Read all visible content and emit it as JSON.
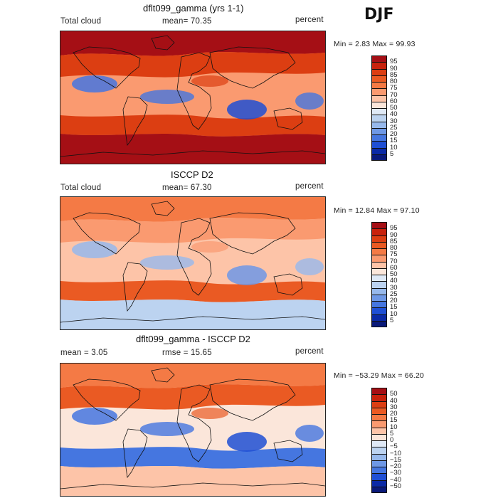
{
  "season": "DJF",
  "panels": [
    {
      "title": "dflt099_gamma (yrs 1-1)",
      "left_label": "Total cloud",
      "mid_label": "mean=  70.35",
      "right_label": "percent",
      "minmax": "Min =   2.83 Max =  99.93",
      "levels": [
        "95",
        "90",
        "85",
        "80",
        "75",
        "70",
        "60",
        "50",
        "40",
        "30",
        "25",
        "20",
        "15",
        "10",
        "5"
      ],
      "colors": [
        "#a50f15",
        "#c8220c",
        "#dc3e12",
        "#ea5a23",
        "#f47a45",
        "#fa9a70",
        "#fdc4a8",
        "#fbe6da",
        "#dfe9f6",
        "#bcd3f0",
        "#97b9ec",
        "#6e98e6",
        "#4576e0",
        "#1f4fd4",
        "#0b2aa6",
        "#0a1a7a"
      ],
      "regions": {
        "north": "#a50f15",
        "upper": "#dc3e12",
        "middle": "#fa9a70",
        "lower": "#dc3e12",
        "south": "#a50f15",
        "blue_patches": "#4576e0",
        "deep_blue": "#1f4fd4"
      }
    },
    {
      "title": "ISCCP D2",
      "left_label": "Total cloud",
      "mid_label": "mean=  67.30",
      "right_label": "percent",
      "minmax": "Min =  12.84 Max =  97.10",
      "levels": [
        "95",
        "90",
        "85",
        "80",
        "75",
        "70",
        "60",
        "50",
        "40",
        "30",
        "25",
        "20",
        "15",
        "10",
        "5"
      ],
      "colors": [
        "#a50f15",
        "#c8220c",
        "#dc3e12",
        "#ea5a23",
        "#f47a45",
        "#fa9a70",
        "#fdc4a8",
        "#fbe6da",
        "#dfe9f6",
        "#bcd3f0",
        "#97b9ec",
        "#6e98e6",
        "#4576e0",
        "#1f4fd4",
        "#0b2aa6",
        "#0a1a7a"
      ],
      "regions": {
        "north": "#f47a45",
        "upper": "#fa9a70",
        "middle": "#fdc4a8",
        "lower": "#ea5a23",
        "south": "#bcd3f0",
        "blue_patches": "#97b9ec",
        "deep_blue": "#6e98e6"
      }
    },
    {
      "title": "dflt099_gamma - ISCCP D2",
      "left_label": "mean =    3.05",
      "mid_label": "rmse =  15.65",
      "right_label": "percent",
      "minmax": "Min = −53.29 Max =  66.20",
      "levels": [
        "50",
        "40",
        "30",
        "20",
        "15",
        "10",
        "5",
        "0",
        "−5",
        "−10",
        "−15",
        "−20",
        "−30",
        "−40",
        "−50"
      ],
      "colors": [
        "#a50f15",
        "#c8220c",
        "#dc3e12",
        "#ea5a23",
        "#f47a45",
        "#fa9a70",
        "#fdc4a8",
        "#fbe6da",
        "#dfe9f6",
        "#bcd3f0",
        "#97b9ec",
        "#6e98e6",
        "#4576e0",
        "#1f4fd4",
        "#0b2aa6",
        "#0a1a7a"
      ],
      "regions": {
        "north": "#f47a45",
        "upper": "#ea5a23",
        "middle": "#fbe6da",
        "lower": "#4576e0",
        "south": "#fdc4a8",
        "blue_patches": "#4576e0",
        "deep_blue": "#1f4fd4"
      }
    }
  ]
}
